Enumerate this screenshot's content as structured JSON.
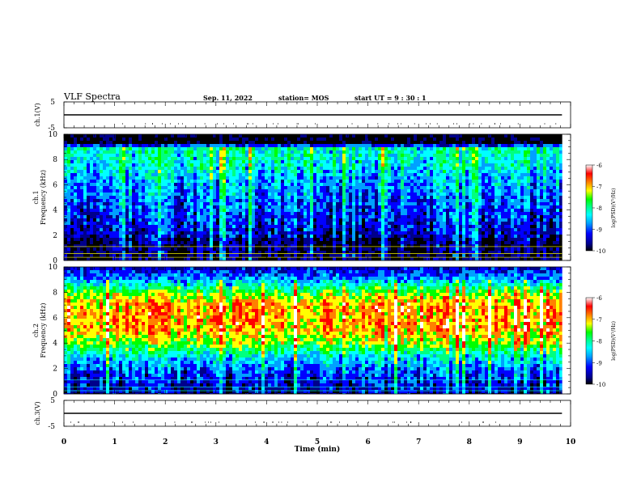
{
  "header": {
    "title": "VLF Spectra",
    "date": "Sep. 11, 2022",
    "station": "station= MOS",
    "start": "start  UT =   9 : 30 : 1"
  },
  "chart_data": [
    {
      "type": "line",
      "ylabel": "ch.1(V)",
      "ylim": [
        -5,
        5
      ],
      "ytick_labels": [
        "5",
        "-5"
      ],
      "series": [
        {
          "x": [
            0,
            9.83
          ],
          "values": [
            0,
            0
          ]
        }
      ],
      "xlim": [
        0,
        10
      ]
    },
    {
      "type": "heatmap",
      "ylabel_line1": "ch.1",
      "ylabel_line2": "Frequency (kHz)",
      "ylim": [
        0,
        10
      ],
      "ytick_labels": [
        "0",
        "2",
        "4",
        "6",
        "8",
        "10"
      ],
      "xlim": [
        0,
        10
      ],
      "data_extent_min": 9.83,
      "colorbar": {
        "label": "log(PSD)(V²/Hz)",
        "range": [
          -10,
          -6
        ],
        "tick_labels": [
          "-10",
          "-9",
          "-8",
          "-7",
          "-6"
        ]
      },
      "colormap": [
        "#000000",
        "#00008b",
        "#0000ff",
        "#00a0ff",
        "#00ffff",
        "#00ff80",
        "#00ff00",
        "#ffff00",
        "#ff8000",
        "#ff0000",
        "#ffffff"
      ],
      "profile": {
        "freq_khz": [
          0,
          1.7,
          2,
          4,
          6,
          8,
          9,
          9.2,
          10
        ],
        "log_psd": [
          -9.8,
          -9.7,
          -9.4,
          -9.1,
          -8.8,
          -8.3,
          -8.2,
          -10,
          -10
        ]
      }
    },
    {
      "type": "heatmap",
      "ylabel_line1": "ch.2",
      "ylabel_line2": "Frequency (kHz)",
      "ylim": [
        0,
        10
      ],
      "ytick_labels": [
        "0",
        "2",
        "4",
        "6",
        "8",
        "10"
      ],
      "xlim": [
        0,
        10
      ],
      "data_extent_min": 9.83,
      "colorbar": {
        "label": "log(PSD)(V²/Hz)",
        "range": [
          -10,
          -6
        ],
        "tick_labels": [
          "-10",
          "-9",
          "-8",
          "-7",
          "-6"
        ]
      },
      "colormap": [
        "#000000",
        "#00008b",
        "#0000ff",
        "#00a0ff",
        "#00ffff",
        "#00ff80",
        "#00ff00",
        "#ffff00",
        "#ff8000",
        "#ff0000",
        "#ffffff"
      ],
      "profile": {
        "freq_khz": [
          0,
          1,
          2,
          3,
          4,
          5,
          6,
          7,
          8,
          8.5,
          9,
          9.5,
          10
        ],
        "log_psd": [
          -9.6,
          -9.3,
          -9.0,
          -8.4,
          -7.5,
          -7.0,
          -6.9,
          -6.9,
          -7.6,
          -8.2,
          -8.7,
          -9.1,
          -9.4
        ]
      }
    },
    {
      "type": "line",
      "ylabel": "ch.3(V)",
      "ylim": [
        -5,
        5
      ],
      "ytick_labels": [
        "5",
        "-5"
      ],
      "series": [
        {
          "x": [
            0,
            9.83
          ],
          "values": [
            0,
            0
          ]
        }
      ],
      "xlim": [
        0,
        10
      ],
      "xlabel": "Time  (min)",
      "xtick_labels": [
        "0",
        "1",
        "2",
        "3",
        "4",
        "5",
        "6",
        "7",
        "8",
        "9",
        "10"
      ]
    }
  ]
}
